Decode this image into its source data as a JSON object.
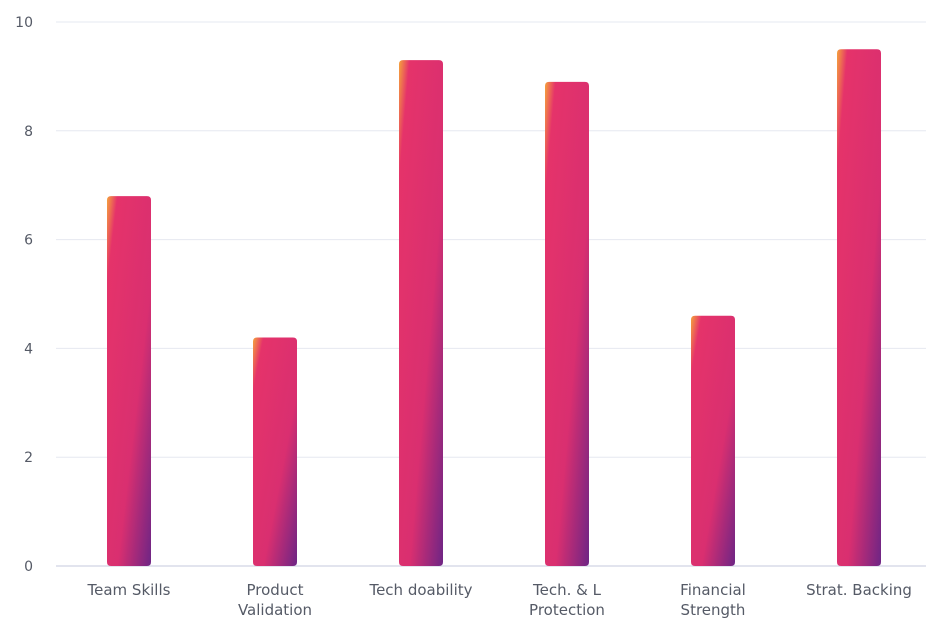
{
  "chart_data": {
    "type": "bar",
    "categories": [
      [
        "Team Skills"
      ],
      [
        "Product",
        "Validation"
      ],
      [
        "Tech doability"
      ],
      [
        "Tech. & L",
        "Protection"
      ],
      [
        "Financial",
        "Strength"
      ],
      [
        "Strat. Backing"
      ]
    ],
    "values": [
      6.8,
      4.2,
      9.3,
      8.9,
      4.6,
      9.5
    ],
    "ylim": [
      0,
      10
    ],
    "yticks": [
      0,
      2,
      4,
      6,
      8,
      10
    ],
    "grid": true,
    "colors": {
      "gradient_start": "#f5a33c",
      "gradient_mid": "#e5336a",
      "gradient_end": "#6e2585",
      "grid": "#e6e8f0",
      "axis": "#d9dbe8"
    }
  }
}
